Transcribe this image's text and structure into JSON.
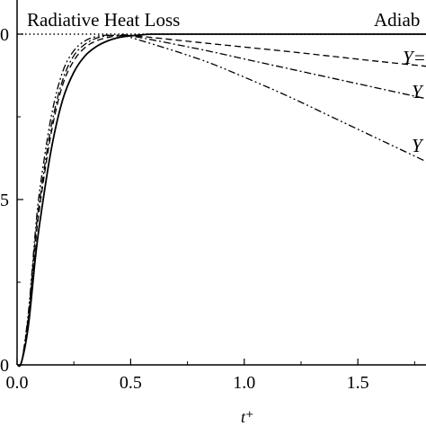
{
  "chart_data": {
    "type": "line",
    "title": "",
    "xlabel": "t⁺",
    "ylabel": "",
    "xlim": [
      0.0,
      1.8
    ],
    "ylim": [
      0.0,
      1.0
    ],
    "x_ticks": [
      "0.0",
      "0.5",
      "1.0",
      "1.5"
    ],
    "y_ticks": [
      "0",
      "5",
      "0"
    ],
    "annotations": {
      "left": "Radiative Heat Loss",
      "right": "Adiab",
      "curve_labels": [
        "Y=",
        "Y",
        "Y"
      ]
    },
    "series": [
      {
        "style": "solid",
        "x": [
          0.0,
          0.02,
          0.05,
          0.08,
          0.1,
          0.15,
          0.2,
          0.25,
          0.3,
          0.35,
          0.4,
          0.45,
          0.5,
          0.55,
          0.6,
          0.8,
          1.0,
          1.2,
          1.4,
          1.6,
          1.8
        ],
        "y": [
          0.0,
          0.01,
          0.12,
          0.32,
          0.43,
          0.65,
          0.8,
          0.885,
          0.935,
          0.963,
          0.98,
          0.99,
          0.995,
          0.998,
          1.0,
          1.0,
          1.0,
          1.0,
          1.0,
          1.0,
          1.0
        ]
      },
      {
        "style": "dashed",
        "x": [
          0.0,
          0.02,
          0.05,
          0.08,
          0.1,
          0.15,
          0.2,
          0.25,
          0.3,
          0.35,
          0.4,
          0.45,
          0.5,
          0.55,
          0.8,
          1.0,
          1.2,
          1.4,
          1.6,
          1.8
        ],
        "y": [
          0.0,
          0.01,
          0.14,
          0.36,
          0.48,
          0.7,
          0.845,
          0.92,
          0.96,
          0.98,
          0.99,
          0.995,
          0.996,
          0.993,
          0.975,
          0.961,
          0.947,
          0.932,
          0.917,
          0.903
        ]
      },
      {
        "style": "dashdot",
        "x": [
          0.0,
          0.02,
          0.05,
          0.08,
          0.1,
          0.15,
          0.2,
          0.25,
          0.3,
          0.35,
          0.4,
          0.45,
          0.5,
          0.8,
          1.0,
          1.2,
          1.4,
          1.6,
          1.8
        ],
        "y": [
          0.0,
          0.01,
          0.15,
          0.38,
          0.5,
          0.72,
          0.86,
          0.935,
          0.97,
          0.988,
          0.995,
          0.997,
          0.995,
          0.955,
          0.925,
          0.895,
          0.865,
          0.835,
          0.805
        ]
      },
      {
        "style": "dashdotdot",
        "x": [
          0.0,
          0.02,
          0.05,
          0.08,
          0.1,
          0.15,
          0.2,
          0.25,
          0.3,
          0.35,
          0.4,
          0.45,
          0.5,
          0.8,
          1.0,
          1.2,
          1.4,
          1.6,
          1.8
        ],
        "y": [
          0.0,
          0.01,
          0.16,
          0.4,
          0.53,
          0.75,
          0.885,
          0.95,
          0.98,
          0.993,
          0.997,
          0.995,
          0.99,
          0.925,
          0.87,
          0.81,
          0.745,
          0.68,
          0.615
        ]
      }
    ],
    "reference_line": {
      "style": "dotted",
      "y": 1.0
    }
  }
}
